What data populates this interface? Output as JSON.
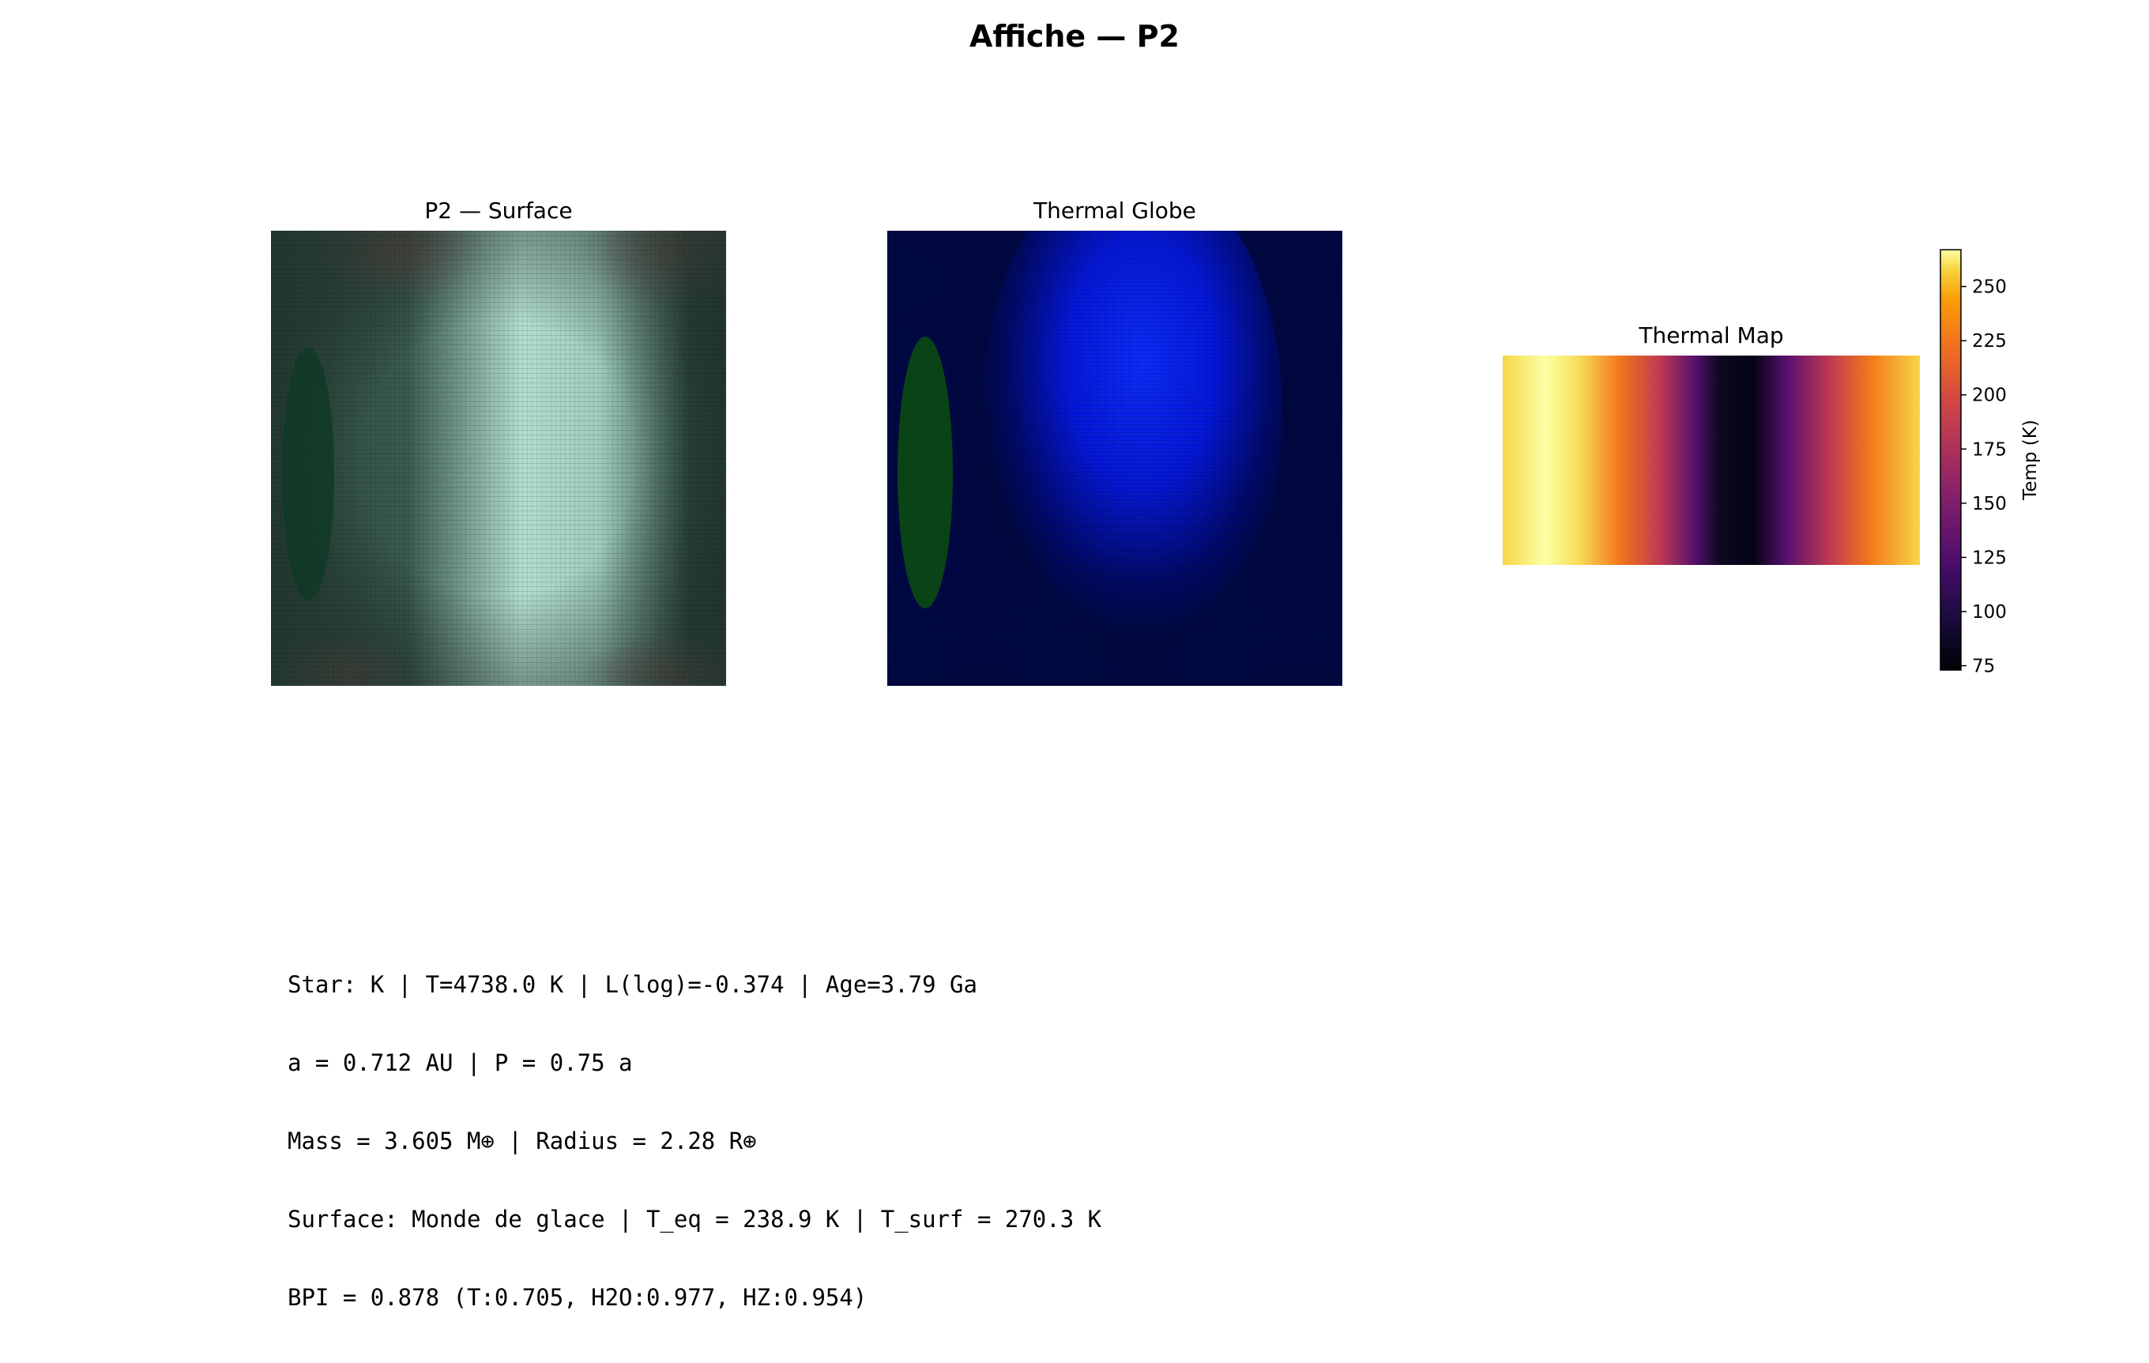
{
  "title": "Affiche — P2",
  "panels": {
    "surface": {
      "title": "P2 — Surface"
    },
    "thermal_globe": {
      "title": "Thermal Globe"
    },
    "thermal_map": {
      "title": "Thermal Map",
      "colorbar_label": "Temp (K)",
      "colormap": "inferno"
    }
  },
  "info_lines": [
    "Star: K | T=4738.0 K | L(log)=-0.374 | Age=3.79 Ga",
    "a = 0.712 AU | P = 0.75 a",
    "Mass = 3.605 M⊕ | Radius = 2.28 R⊕",
    "Surface: Monde de glace | T_eq = 238.9 K | T_surf = 270.3 K",
    "BPI = 0.878 (T:0.705, H2O:0.977, HZ:0.954)"
  ],
  "chart_data": [
    {
      "type": "heatmap",
      "title": "P2 — Surface",
      "description_colors": {
        "base": "#2f4a40",
        "ice": "#b9e3d6",
        "ocean_patch": "#0f3a26"
      }
    },
    {
      "type": "heatmap",
      "title": "Thermal Globe",
      "description_colors": {
        "background": "#000a4a",
        "warm": "#0022ff",
        "ocean_patch": "#0a4a10"
      }
    },
    {
      "type": "heatmap",
      "title": "Thermal Map",
      "colorbar": {
        "label": "Temp (K)",
        "ticks": [
          75,
          100,
          125,
          150,
          175,
          200,
          225,
          250
        ],
        "range": [
          73,
          267
        ]
      },
      "profile_x": [
        0,
        0.1,
        0.2,
        0.3,
        0.4,
        0.5,
        0.6,
        0.7,
        0.8,
        0.9,
        1.0
      ],
      "profile_temp": [
        262,
        267,
        258,
        215,
        155,
        85,
        155,
        215,
        258,
        263,
        262
      ]
    }
  ]
}
